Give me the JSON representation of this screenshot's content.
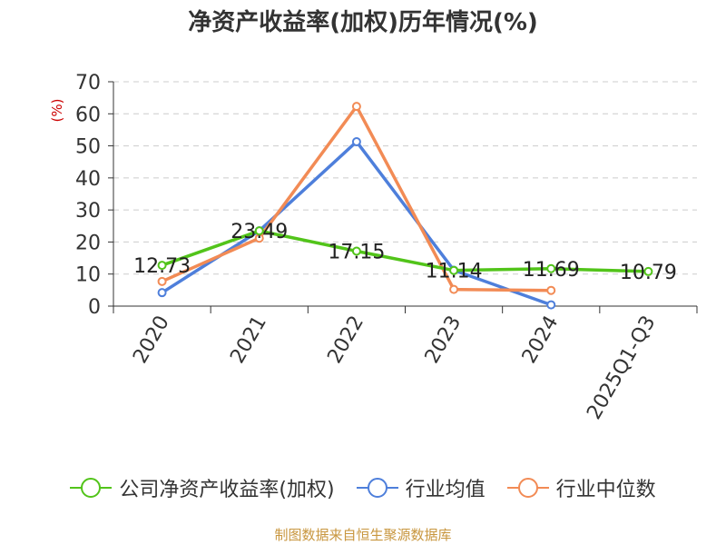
{
  "chart_data": {
    "type": "line",
    "title": "净资产收益率(加权)历年情况(%)",
    "ylabel": "(%)",
    "xlabel": "",
    "categories": [
      "2020",
      "2021",
      "2022",
      "2023",
      "2024",
      "2025Q1-Q3"
    ],
    "ylim": [
      0,
      70
    ],
    "yticks": [
      0,
      10,
      20,
      30,
      40,
      50,
      60,
      70
    ],
    "grid": true,
    "legend_position": "bottom",
    "series": [
      {
        "name": "公司净资产收益率(加权)",
        "color": "#52c41a",
        "values": [
          12.73,
          23.49,
          17.15,
          11.14,
          11.69,
          10.79
        ],
        "labels": [
          "12.73",
          "23.49",
          "17.15",
          "11.14",
          "11.69",
          "10.79"
        ]
      },
      {
        "name": "行业均值",
        "color": "#4e7fdb",
        "values": [
          4.2,
          23.5,
          51.3,
          11.2,
          0.4,
          null
        ]
      },
      {
        "name": "行业中位数",
        "color": "#f28b55",
        "values": [
          7.7,
          21.2,
          62.3,
          5.2,
          4.9,
          null
        ]
      }
    ]
  },
  "footer": "制图数据来自恒生聚源数据库"
}
